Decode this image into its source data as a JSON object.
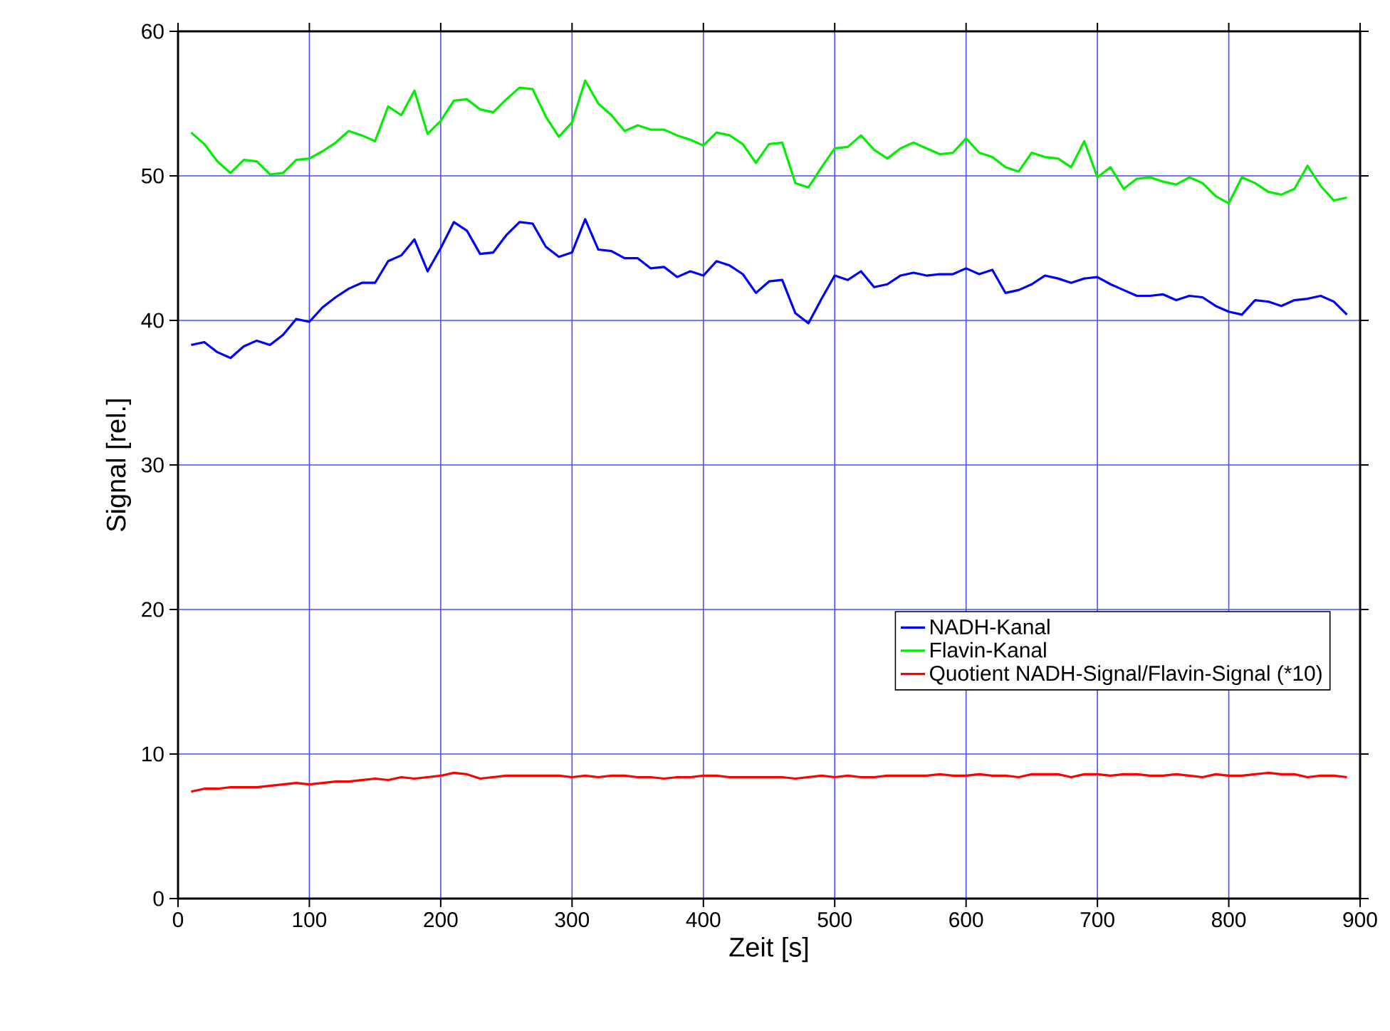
{
  "chart_data": {
    "type": "line",
    "xlabel": "Zeit [s]",
    "ylabel": "Signal  [rel.]",
    "x": [
      10,
      20,
      30,
      40,
      50,
      60,
      70,
      80,
      90,
      100,
      110,
      120,
      130,
      140,
      150,
      160,
      170,
      180,
      190,
      200,
      210,
      220,
      230,
      240,
      250,
      260,
      270,
      280,
      290,
      300,
      310,
      320,
      330,
      340,
      350,
      360,
      370,
      380,
      390,
      400,
      410,
      420,
      430,
      440,
      450,
      460,
      470,
      480,
      490,
      500,
      510,
      520,
      530,
      540,
      550,
      560,
      570,
      580,
      590,
      600,
      610,
      620,
      630,
      640,
      650,
      660,
      670,
      680,
      690,
      700,
      710,
      720,
      730,
      740,
      750,
      760,
      770,
      780,
      790,
      800,
      810,
      820,
      830,
      840,
      850,
      860,
      870,
      880,
      890
    ],
    "series": [
      {
        "name": "NADH-Kanal",
        "color": "#0000ff",
        "values": [
          38.3,
          38.5,
          37.8,
          37.4,
          38.2,
          38.6,
          38.3,
          39.0,
          40.1,
          39.9,
          40.9,
          41.6,
          42.2,
          42.6,
          42.6,
          44.1,
          44.5,
          45.6,
          43.4,
          45.0,
          46.8,
          46.2,
          44.6,
          44.7,
          45.9,
          46.8,
          46.7,
          45.1,
          44.4,
          44.7,
          47.0,
          44.9,
          44.8,
          44.3,
          44.3,
          43.6,
          43.7,
          43.0,
          43.4,
          43.1,
          44.1,
          43.8,
          43.2,
          41.9,
          42.7,
          42.8,
          40.5,
          39.8,
          41.5,
          43.1,
          42.8,
          43.4,
          42.3,
          42.5,
          43.1,
          43.3,
          43.1,
          43.2,
          43.2,
          43.6,
          43.2,
          43.5,
          41.9,
          42.1,
          42.5,
          43.1,
          42.9,
          42.6,
          42.9,
          43.0,
          42.5,
          42.1,
          41.7,
          41.7,
          41.8,
          41.4,
          41.7,
          41.6,
          41.0,
          40.6,
          40.4,
          41.4,
          41.3,
          41.0,
          41.4,
          41.5,
          41.7,
          41.3,
          40.4
        ]
      },
      {
        "name": "Flavin-Kanal",
        "color": "#00ee00",
        "values": [
          53.0,
          52.2,
          51.0,
          50.2,
          51.1,
          51.0,
          50.1,
          50.2,
          51.1,
          51.2,
          51.7,
          52.3,
          53.1,
          52.8,
          52.4,
          54.8,
          54.2,
          55.9,
          52.9,
          53.8,
          55.2,
          55.3,
          54.6,
          54.4,
          55.3,
          56.1,
          56.0,
          54.1,
          52.7,
          53.7,
          56.6,
          55.0,
          54.2,
          53.1,
          53.5,
          53.2,
          53.2,
          52.8,
          52.5,
          52.1,
          53.0,
          52.8,
          52.2,
          50.9,
          52.2,
          52.3,
          49.5,
          49.2,
          50.6,
          51.9,
          52.0,
          52.8,
          51.8,
          51.2,
          51.9,
          52.3,
          51.9,
          51.5,
          51.6,
          52.6,
          51.6,
          51.3,
          50.6,
          50.3,
          51.6,
          51.3,
          51.2,
          50.6,
          52.4,
          49.9,
          50.6,
          49.1,
          49.8,
          49.9,
          49.6,
          49.4,
          49.9,
          49.5,
          48.6,
          48.1,
          49.9,
          49.5,
          48.9,
          48.7,
          49.1,
          50.7,
          49.3,
          48.3,
          48.5
        ]
      },
      {
        "name": "Quotient NADH-Signal/Flavin-Signal (*10)",
        "color": "#ff0000",
        "values": [
          7.4,
          7.6,
          7.6,
          7.7,
          7.7,
          7.7,
          7.8,
          7.9,
          8.0,
          7.9,
          8.0,
          8.1,
          8.1,
          8.2,
          8.3,
          8.2,
          8.4,
          8.3,
          8.4,
          8.5,
          8.7,
          8.6,
          8.3,
          8.4,
          8.5,
          8.5,
          8.5,
          8.5,
          8.5,
          8.4,
          8.5,
          8.4,
          8.5,
          8.5,
          8.4,
          8.4,
          8.3,
          8.4,
          8.4,
          8.5,
          8.5,
          8.4,
          8.4,
          8.4,
          8.4,
          8.4,
          8.3,
          8.4,
          8.5,
          8.4,
          8.5,
          8.4,
          8.4,
          8.5,
          8.5,
          8.5,
          8.5,
          8.6,
          8.5,
          8.5,
          8.6,
          8.5,
          8.5,
          8.4,
          8.6,
          8.6,
          8.6,
          8.4,
          8.6,
          8.6,
          8.5,
          8.6,
          8.6,
          8.5,
          8.5,
          8.6,
          8.5,
          8.4,
          8.6,
          8.5,
          8.5,
          8.6,
          8.7,
          8.6,
          8.6,
          8.4,
          8.5,
          8.5,
          8.4
        ]
      }
    ],
    "xlim": [
      0,
      900
    ],
    "xticks": [
      0,
      100,
      200,
      300,
      400,
      500,
      600,
      700,
      800,
      900
    ],
    "ylim": [
      0,
      60
    ],
    "yticks": [
      0,
      10,
      20,
      30,
      40,
      50,
      60
    ],
    "grid": true,
    "legend": "right",
    "marker": "none",
    "line_style": "solid"
  }
}
